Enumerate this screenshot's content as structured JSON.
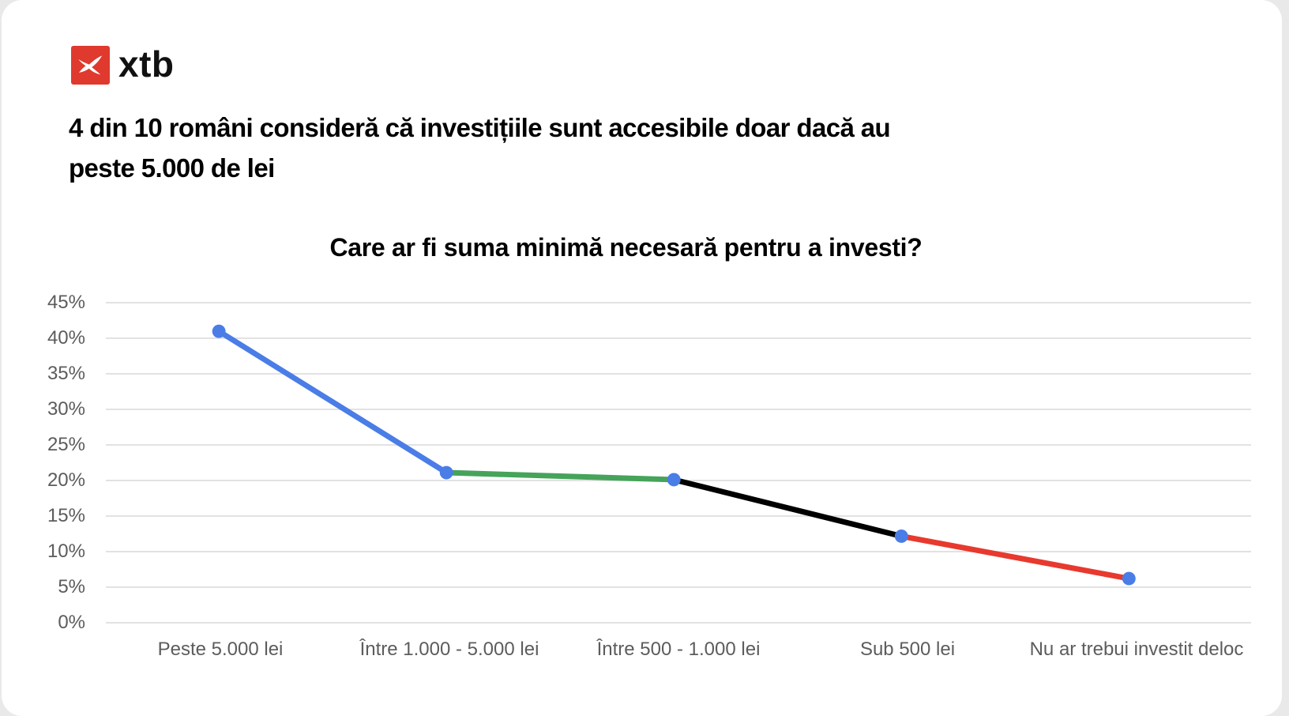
{
  "brand": {
    "name": "xtb",
    "square_color": "#e0392e",
    "glyph_color": "#ffffff",
    "text_color": "#111111"
  },
  "headline": {
    "line1": "4 din 10 români consideră că investițiile sunt accesibile doar dacă au",
    "line2": "peste 5.000 de lei"
  },
  "chart_data": {
    "type": "line",
    "title": "Care ar fi suma minimă necesară pentru a investi?",
    "categories": [
      "Peste 5.000 lei",
      "Între 1.000 - 5.000 lei",
      "Între 500 - 1.000 lei",
      "Sub 500 lei",
      "Nu ar trebui investit deloc"
    ],
    "values": [
      41,
      21,
      20,
      12,
      6
    ],
    "unit": "%",
    "ylim": [
      0,
      45
    ],
    "ytick_step": 5,
    "xlabel": "",
    "ylabel": "",
    "grid": true,
    "legend": "none",
    "segment_colors": [
      "#4a7de6",
      "#46a35a",
      "#000000",
      "#e8392e"
    ],
    "point_color": "#4a7de6",
    "gridline_color": "#e2e2e2",
    "axis_text_color": "#5c5c5c"
  }
}
